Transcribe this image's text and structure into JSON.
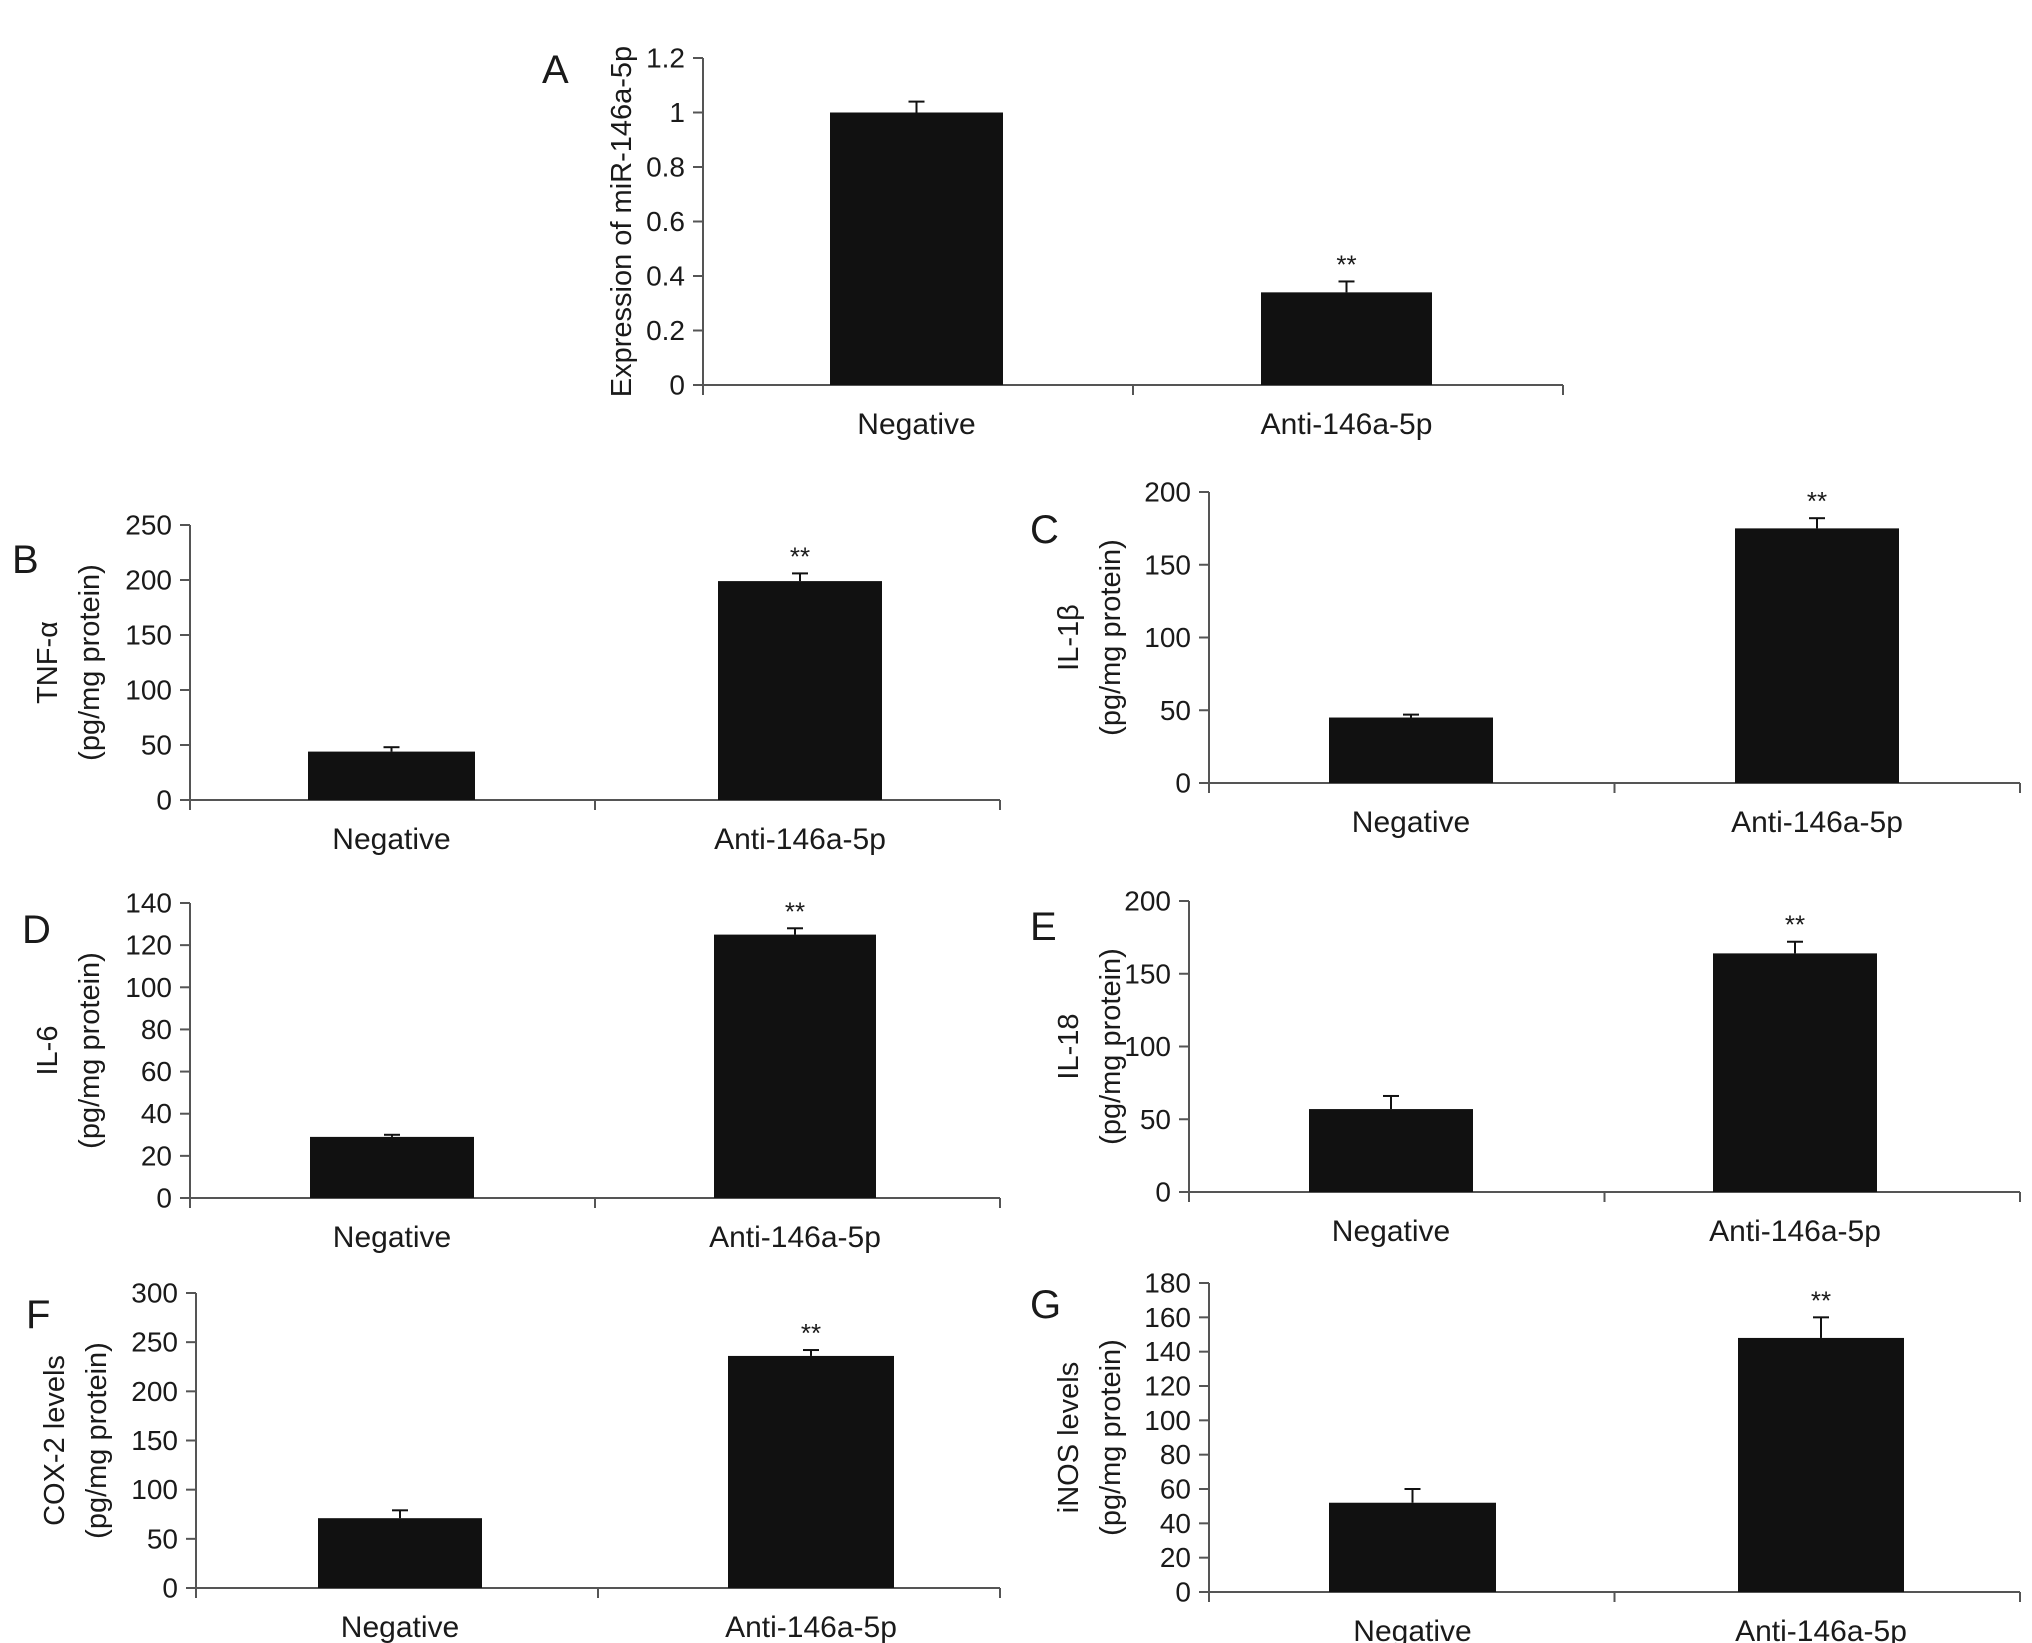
{
  "chart_data": [
    {
      "type": "bar",
      "panel": "A",
      "categories": [
        "Negative",
        "Anti-146a-5p"
      ],
      "values": [
        1.0,
        0.34
      ],
      "errors": [
        0.04,
        0.04
      ],
      "significance": [
        "",
        "**"
      ],
      "ylabel_lines": [
        "Expression of miR-146a-5p"
      ],
      "ylim": [
        0,
        1.2
      ],
      "yticks": [
        0,
        0.2,
        0.4,
        0.6,
        0.8,
        1,
        1.2
      ]
    },
    {
      "type": "bar",
      "panel": "B",
      "categories": [
        "Negative",
        "Anti-146a-5p"
      ],
      "values": [
        44,
        199
      ],
      "errors": [
        4,
        7
      ],
      "significance": [
        "",
        "**"
      ],
      "ylabel_lines": [
        "TNF-α",
        "(pg/mg protein)"
      ],
      "ylim": [
        0,
        250
      ],
      "yticks": [
        0,
        50,
        100,
        150,
        200,
        250
      ]
    },
    {
      "type": "bar",
      "panel": "C",
      "categories": [
        "Negative",
        "Anti-146a-5p"
      ],
      "values": [
        45,
        175
      ],
      "errors": [
        2,
        7
      ],
      "significance": [
        "",
        "**"
      ],
      "ylabel_lines": [
        "IL-1β",
        "(pg/mg protein)"
      ],
      "ylim": [
        0,
        200
      ],
      "yticks": [
        0,
        50,
        100,
        150,
        200
      ]
    },
    {
      "type": "bar",
      "panel": "D",
      "categories": [
        "Negative",
        "Anti-146a-5p"
      ],
      "values": [
        29,
        125
      ],
      "errors": [
        1,
        3
      ],
      "significance": [
        "",
        "**"
      ],
      "ylabel_lines": [
        "IL-6",
        "(pg/mg protein)"
      ],
      "ylim": [
        0,
        140
      ],
      "yticks": [
        0,
        20,
        40,
        60,
        80,
        100,
        120,
        140
      ]
    },
    {
      "type": "bar",
      "panel": "E",
      "categories": [
        "Negative",
        "Anti-146a-5p"
      ],
      "values": [
        57,
        164
      ],
      "errors": [
        9,
        8
      ],
      "significance": [
        "",
        "**"
      ],
      "ylabel_lines": [
        "IL-18",
        "(pg/mg protein)"
      ],
      "ylim": [
        0,
        200
      ],
      "yticks": [
        0,
        50,
        100,
        150,
        200
      ]
    },
    {
      "type": "bar",
      "panel": "F",
      "categories": [
        "Negative",
        "Anti-146a-5p"
      ],
      "values": [
        71,
        236
      ],
      "errors": [
        8,
        6
      ],
      "significance": [
        "",
        "**"
      ],
      "ylabel_lines": [
        "COX-2 levels",
        "(pg/mg protein)"
      ],
      "ylim": [
        0,
        300
      ],
      "yticks": [
        0,
        50,
        100,
        150,
        200,
        250,
        300
      ]
    },
    {
      "type": "bar",
      "panel": "G",
      "categories": [
        "Negative",
        "Anti-146a-5p"
      ],
      "values": [
        52,
        148
      ],
      "errors": [
        8,
        12
      ],
      "significance": [
        "",
        "**"
      ],
      "ylabel_lines": [
        "iNOS levels",
        "(pg/mg protein)"
      ],
      "ylim": [
        0,
        180
      ],
      "yticks": [
        0,
        20,
        40,
        60,
        80,
        100,
        120,
        140,
        160,
        180
      ]
    }
  ]
}
